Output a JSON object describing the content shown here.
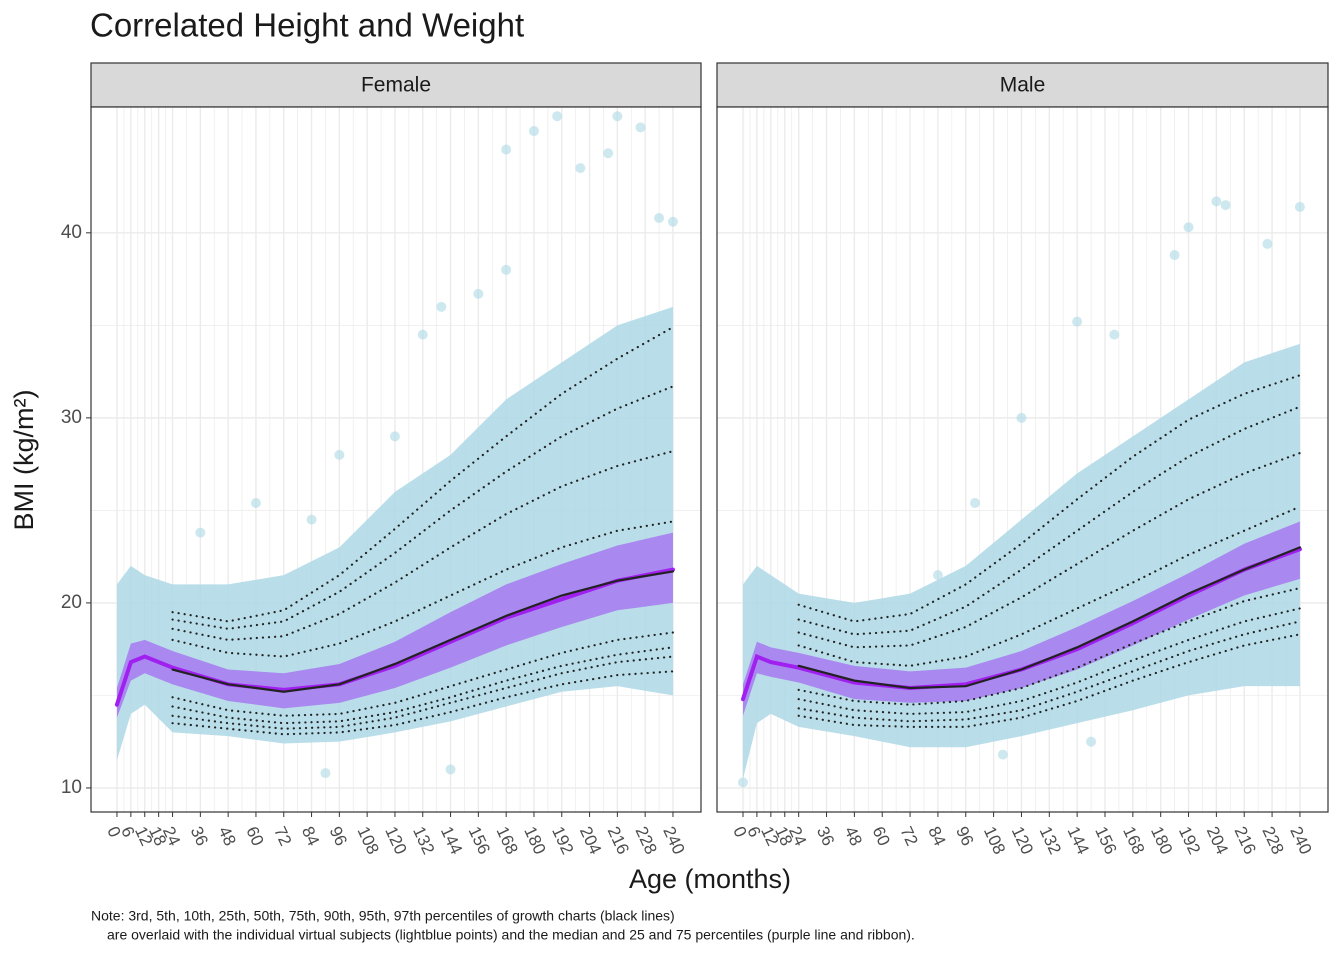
{
  "chart_data": {
    "type": "faceted-scatter",
    "title": "Correlated Height and Weight",
    "xlabel": "Age (months)",
    "ylabel": "BMI (kg/m²)",
    "note": [
      "Note: 3rd, 5th, 10th, 25th, 50th, 75th, 90th, 95th, 97th percentiles of growth charts (black lines)",
      "are overlaid with the individual virtual subjects (lightblue points) and the median and 25 and 75 percentiles (purple line and ribbon)."
    ],
    "xlim": [
      -11.2,
      252.1
    ],
    "ylim": [
      8.7,
      46.8
    ],
    "xticks": [
      0,
      6,
      12,
      18,
      24,
      36,
      48,
      60,
      72,
      84,
      96,
      108,
      120,
      132,
      144,
      156,
      168,
      180,
      192,
      204,
      216,
      228,
      240
    ],
    "yticks": [
      10,
      20,
      30,
      40
    ],
    "grid": true,
    "point_color": "#add8e6",
    "ribbon_color": "#a77ff0",
    "median_color": "#a020f0",
    "growth_color": "#222222",
    "facets": [
      {
        "label": "Female",
        "cloud_x": [
          0,
          6,
          12,
          24,
          48,
          72,
          96,
          120,
          144,
          168,
          192,
          216,
          240
        ],
        "cloud_low": [
          11.5,
          14.0,
          14.5,
          13.0,
          12.8,
          12.4,
          12.5,
          13.0,
          13.6,
          14.4,
          15.2,
          15.5,
          15.0
        ],
        "cloud_high": [
          21,
          22,
          21.5,
          21,
          21,
          21.5,
          23,
          26,
          28,
          31,
          33,
          35,
          36
        ],
        "points_x": [
          120,
          132,
          140,
          156,
          168,
          180,
          190,
          200,
          216,
          226,
          212,
          234,
          240,
          96,
          84,
          60,
          36,
          144,
          90,
          168
        ],
        "points_y": [
          29,
          34.5,
          36,
          36.7,
          38,
          45.5,
          46.3,
          43.5,
          46.3,
          45.7,
          44.3,
          40.8,
          40.6,
          28,
          24.5,
          25.4,
          23.8,
          11,
          10.8,
          44.5
        ],
        "median_x": [
          0,
          6,
          12,
          24,
          48,
          72,
          96,
          120,
          144,
          168,
          192,
          216,
          240
        ],
        "median": [
          14.5,
          16.8,
          17.1,
          16.5,
          15.6,
          15.3,
          15.6,
          16.6,
          17.9,
          19.2,
          20.2,
          21.2,
          21.8
        ],
        "q25": [
          13.8,
          15.8,
          16.2,
          15.6,
          14.7,
          14.3,
          14.6,
          15.4,
          16.5,
          17.7,
          18.7,
          19.6,
          20.0
        ],
        "q75": [
          15.4,
          17.8,
          18.0,
          17.4,
          16.4,
          16.2,
          16.7,
          17.9,
          19.5,
          21.0,
          22.1,
          23.1,
          23.8
        ],
        "percentile_x": [
          24,
          48,
          72,
          96,
          120,
          144,
          168,
          192,
          216,
          240
        ],
        "percentiles": [
          [
            13.5,
            13.2,
            12.9,
            13.0,
            13.4,
            14.1,
            14.9,
            15.6,
            16.1,
            16.3
          ],
          [
            13.9,
            13.5,
            13.2,
            13.3,
            13.8,
            14.6,
            15.4,
            16.2,
            16.8,
            17.1
          ],
          [
            14.4,
            13.8,
            13.5,
            13.6,
            14.1,
            14.9,
            15.8,
            16.6,
            17.2,
            17.6
          ],
          [
            14.9,
            14.2,
            13.9,
            14.0,
            14.6,
            15.5,
            16.4,
            17.3,
            18.0,
            18.4
          ],
          [
            16.4,
            15.6,
            15.2,
            15.6,
            16.7,
            18.0,
            19.3,
            20.4,
            21.2,
            21.7
          ],
          [
            18.0,
            17.3,
            17.1,
            17.8,
            19.0,
            20.4,
            21.8,
            23.0,
            23.9,
            24.4
          ],
          [
            18.6,
            18.0,
            18.2,
            19.4,
            21.1,
            23.0,
            24.8,
            26.3,
            27.4,
            28.2
          ],
          [
            19.1,
            18.6,
            19.0,
            20.6,
            22.7,
            25.0,
            27.1,
            29.0,
            30.5,
            31.7
          ],
          [
            19.5,
            19.0,
            19.6,
            21.5,
            24.0,
            26.6,
            29.0,
            31.3,
            33.2,
            34.9
          ]
        ]
      },
      {
        "label": "Male",
        "cloud_x": [
          0,
          6,
          12,
          24,
          48,
          72,
          96,
          120,
          144,
          168,
          192,
          216,
          240
        ],
        "cloud_low": [
          10.5,
          13.5,
          14,
          13.3,
          12.8,
          12.2,
          12.2,
          12.8,
          13.5,
          14.2,
          15,
          15.5,
          15.5
        ],
        "cloud_high": [
          21,
          22,
          21.5,
          20.5,
          20,
          20.5,
          22,
          24.5,
          27,
          29,
          31,
          33,
          34
        ],
        "points_x": [
          120,
          144,
          160,
          186,
          204,
          208,
          226,
          240,
          100,
          84,
          0,
          192,
          150,
          112
        ],
        "points_y": [
          30,
          35.2,
          34.5,
          38.8,
          41.7,
          41.5,
          39.4,
          41.4,
          25.4,
          21.5,
          10.3,
          40.3,
          12.5,
          11.8
        ],
        "median_x": [
          0,
          6,
          12,
          24,
          48,
          72,
          96,
          120,
          144,
          168,
          192,
          216,
          240
        ],
        "median": [
          14.8,
          17.1,
          16.8,
          16.5,
          15.7,
          15.4,
          15.6,
          16.4,
          17.5,
          18.9,
          20.4,
          21.8,
          22.9
        ],
        "q25": [
          13.9,
          16.2,
          16.0,
          15.7,
          14.8,
          14.6,
          14.7,
          15.4,
          16.4,
          17.7,
          19.1,
          20.4,
          21.3
        ],
        "q75": [
          15.6,
          17.9,
          17.6,
          17.3,
          16.6,
          16.3,
          16.5,
          17.4,
          18.7,
          20.1,
          21.6,
          23.2,
          24.4
        ],
        "percentile_x": [
          24,
          48,
          72,
          96,
          120,
          144,
          168,
          192,
          216,
          240
        ],
        "percentiles": [
          [
            13.9,
            13.4,
            13.3,
            13.3,
            13.8,
            14.7,
            15.8,
            16.8,
            17.7,
            18.3
          ],
          [
            14.3,
            13.8,
            13.6,
            13.7,
            14.2,
            15.2,
            16.3,
            17.4,
            18.3,
            19.0
          ],
          [
            14.8,
            14.2,
            14.0,
            14.1,
            14.7,
            15.7,
            16.9,
            18.0,
            19.0,
            19.7
          ],
          [
            15.3,
            14.7,
            14.5,
            14.7,
            15.4,
            16.5,
            17.8,
            19.0,
            20.1,
            20.8
          ],
          [
            16.6,
            15.8,
            15.4,
            15.5,
            16.4,
            17.6,
            19.0,
            20.5,
            21.8,
            23.0
          ],
          [
            17.7,
            16.8,
            16.6,
            17.1,
            18.3,
            19.7,
            21.1,
            22.6,
            23.9,
            25.2
          ],
          [
            18.4,
            17.6,
            17.7,
            18.7,
            20.3,
            22.1,
            23.9,
            25.6,
            27.0,
            28.1
          ],
          [
            19.1,
            18.3,
            18.5,
            19.8,
            21.8,
            23.9,
            26.0,
            27.9,
            29.4,
            30.6
          ],
          [
            19.9,
            19.0,
            19.4,
            21.0,
            23.2,
            25.6,
            27.9,
            29.9,
            31.3,
            32.3
          ]
        ]
      }
    ]
  }
}
